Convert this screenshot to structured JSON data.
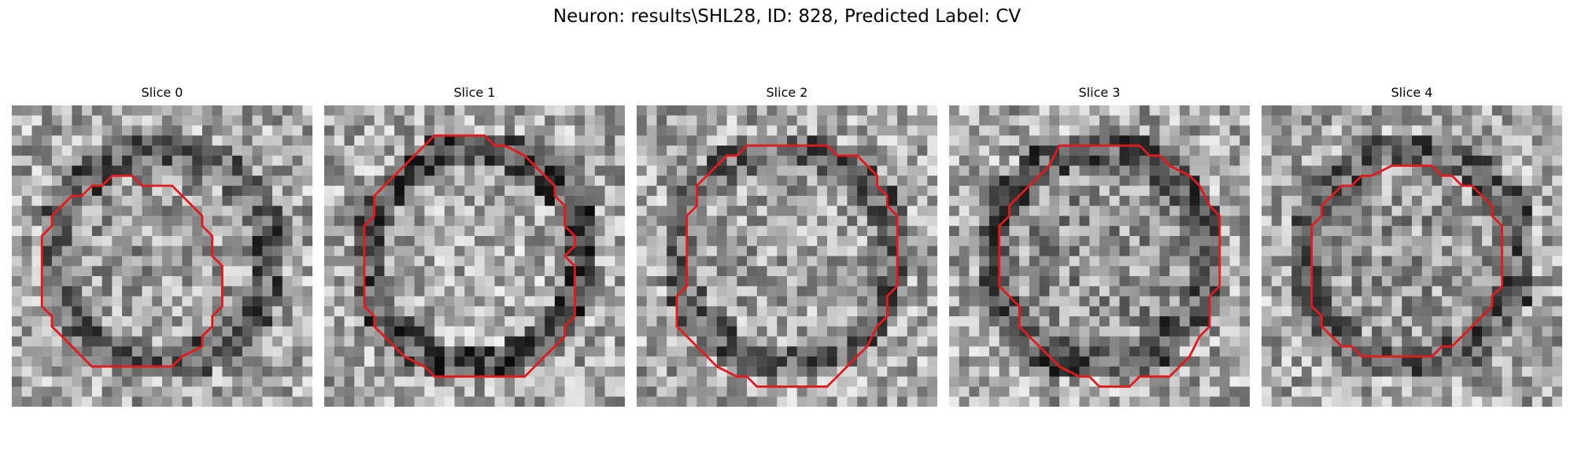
{
  "figure": {
    "title": "Neuron: results\\SHL28, ID: 828, Predicted Label: CV"
  },
  "slices": [
    {
      "title": "Slice 0",
      "seed": 11,
      "center_brightness": 0.62,
      "ring_darkness": 0.45
    },
    {
      "title": "Slice 1",
      "seed": 23,
      "center_brightness": 0.68,
      "ring_darkness": 0.55
    },
    {
      "title": "Slice 2",
      "seed": 37,
      "center_brightness": 0.64,
      "ring_darkness": 0.4
    },
    {
      "title": "Slice 3",
      "seed": 41,
      "center_brightness": 0.58,
      "ring_darkness": 0.5
    },
    {
      "title": "Slice 4",
      "seed": 53,
      "center_brightness": 0.6,
      "ring_darkness": 0.45
    }
  ],
  "colors": {
    "contour": "#e31a1c"
  },
  "image_grid": 30
}
